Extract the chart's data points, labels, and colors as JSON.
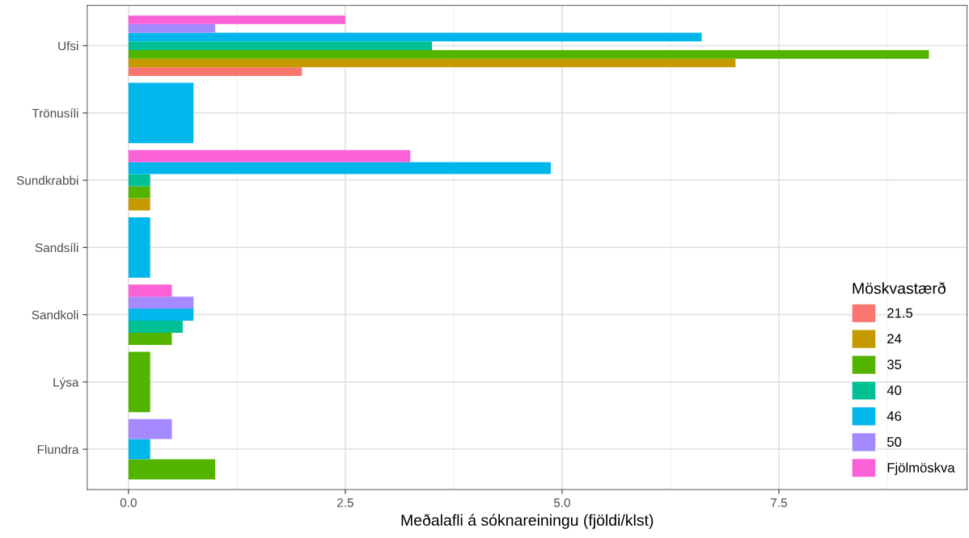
{
  "chart_data": {
    "type": "bar",
    "orientation": "horizontal",
    "xlabel": "Meðalafli á sóknareiningu (fjöldi/klst)",
    "legend_title": "Möskvastærð",
    "legend": "bottom right",
    "grid": true,
    "categories": [
      "Ufsi",
      "Trönusíli",
      "Sundkrabbi",
      "Sandsíli",
      "Sandkoli",
      "Lýsa",
      "Flundra"
    ],
    "xlim": [
      -0.476,
      9.67
    ],
    "xticks": [
      {
        "value": 0,
        "label": "0.0"
      },
      {
        "value": 2.5,
        "label": "2.5"
      },
      {
        "value": 5,
        "label": "5.0"
      },
      {
        "value": 7.5,
        "label": "7.5"
      }
    ],
    "series": [
      {
        "name": "21.5",
        "color": "#f8766d",
        "values": [
          2.0,
          null,
          null,
          null,
          null,
          null,
          null
        ]
      },
      {
        "name": "24",
        "color": "#c49a00",
        "values": [
          7.0,
          null,
          0.25,
          null,
          null,
          null,
          null
        ]
      },
      {
        "name": "35",
        "color": "#53b400",
        "values": [
          9.23,
          null,
          0.25,
          null,
          0.5,
          0.25,
          1.0
        ]
      },
      {
        "name": "40",
        "color": "#00c094",
        "values": [
          3.5,
          null,
          0.25,
          null,
          0.625,
          null,
          null
        ]
      },
      {
        "name": "46",
        "color": "#00b6eb",
        "values": [
          6.61,
          0.75,
          4.87,
          0.25,
          0.75,
          null,
          0.25
        ]
      },
      {
        "name": "50",
        "color": "#a58aff",
        "values": [
          1.0,
          null,
          null,
          null,
          0.75,
          null,
          0.5
        ]
      },
      {
        "name": "Fjölmöskva",
        "color": "#fb61d7",
        "values": [
          2.5,
          null,
          3.25,
          null,
          0.5,
          null,
          null
        ]
      }
    ]
  }
}
